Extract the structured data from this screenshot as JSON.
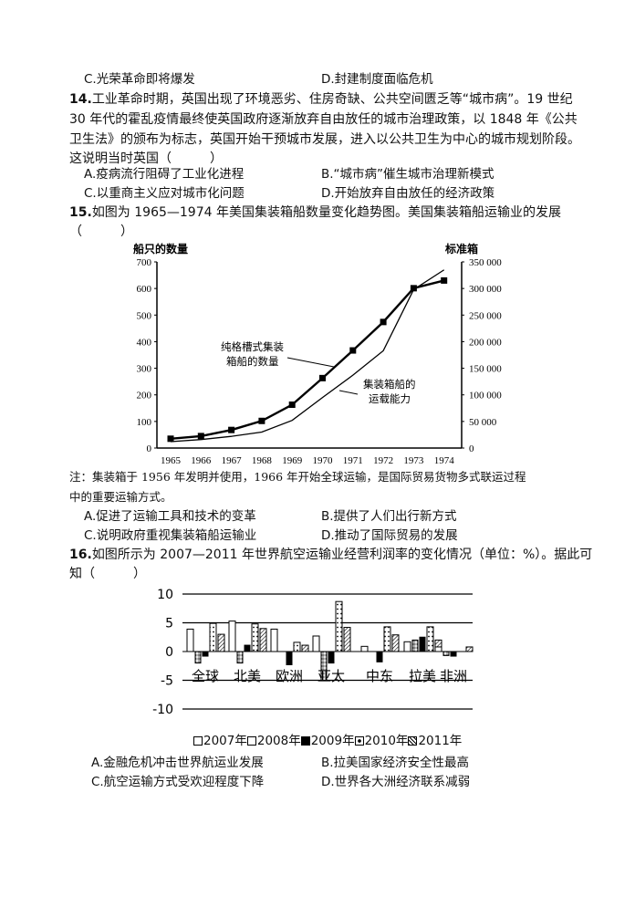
{
  "q13_tail": {
    "optC": "C.光荣革命即将爆发",
    "optD": "D.封建制度面临危机"
  },
  "q14": {
    "number": "14.",
    "stem_line1": "工业革命时期，英国出现了环境恶劣、住房奇缺、公共空间匮乏等“城市病”。19 世纪",
    "stem_line2": "30 年代的霍乱疫情最终使英国政府逐渐放弃自由放任的城市治理政策，以 1848 年《公共",
    "stem_line3": "卫生法》的颁布为标志，英国开始干预城市发展，进入以公共卫生为中心的城市规划阶段。",
    "stem_line4": "这说明当时英国（　　　）",
    "optA": "A.疫病流行阻碍了工业化进程",
    "optB": "B.“城市病”催生城市治理新模式",
    "optC": "C.以重商主义应对城市化问题",
    "optD": "D.开始放弃自由放任的经济政策"
  },
  "q15": {
    "number": "15.",
    "stem_line1": "如图为 1965—1974 年美国集装箱船数量变化趋势图。美国集装箱船运输业的发展",
    "stem_line2": "（　　　）",
    "note_line1": "注：集装箱于 1956 年发明并使用，1966 年开始全球运输，是国际贸易货物多式联运过程",
    "note_line2": "中的重要运输方式。",
    "optA": "A.促进了运输工具和技术的变革",
    "optB": "B.提供了人们出行新方式",
    "optC": "C.说明政府重视集装箱船运输业",
    "optD": "D.推动了国际贸易的发展"
  },
  "q16": {
    "number": "16.",
    "stem_line1": "如图所示为 2007—2011 年世界航空运输业经营利润率的变化情况（单位：%）。据此可",
    "stem_line2": "知（　　　）",
    "optA": "A.金融危机冲击世界航运业发展",
    "optB": "B.拉美国家经济安全性最高",
    "optC": "C.航空运输方式受欢迎程度下降",
    "optD": "D.世界各大洲经济联系减弱"
  },
  "chart_data": [
    {
      "type": "line",
      "title": "",
      "ylabel": "船只的数量",
      "ylabel_right": "标准箱",
      "xlabel": "",
      "ylim": [
        0,
        700
      ],
      "ylim_right": [
        0,
        350000
      ],
      "yticks": [
        "0",
        "100",
        "200",
        "300",
        "400",
        "500",
        "600",
        "700"
      ],
      "yticks_right": [
        "0",
        "50 000",
        "100 000",
        "150 000",
        "200 000",
        "250 000",
        "300 000",
        "350 000"
      ],
      "categories": [
        "1965",
        "1966",
        "1967",
        "1968",
        "1969",
        "1970",
        "1971",
        "1972",
        "1973",
        "1974"
      ],
      "series": [
        {
          "name": "纯格槽式集装箱船的数量",
          "axis": "left",
          "marker": "square",
          "values": [
            35,
            45,
            68,
            102,
            163,
            263,
            367,
            474,
            601,
            630
          ]
        },
        {
          "name": "集装箱船的运载能力",
          "axis": "right",
          "marker": "none",
          "values": [
            12000,
            16000,
            22000,
            30000,
            52000,
            95000,
            137000,
            183000,
            298000,
            335000
          ]
        }
      ],
      "annotations": [
        "纯格槽式集装",
        "箱船的数量",
        "集装箱船的",
        "运载能力"
      ],
      "grid": false
    },
    {
      "type": "bar",
      "title": "",
      "xlabel": "",
      "ylabel": "",
      "ylim": [
        -10,
        10
      ],
      "yticks": [
        "10",
        "5",
        "0",
        "-5",
        "-10"
      ],
      "categories": [
        "全球",
        "北美",
        "欧洲",
        "亚太",
        "中东",
        "拉美",
        "非洲"
      ],
      "series": [
        {
          "name": "2007年",
          "values": [
            3.9,
            5.3,
            3.9,
            2.7,
            0.9,
            1.7,
            0.8
          ]
        },
        {
          "name": "2008年",
          "values": [
            -2.0,
            -2.0,
            0.0,
            -5.0,
            0.0,
            2.0,
            -0.7
          ]
        },
        {
          "name": "2009年",
          "values": [
            -0.8,
            1.1,
            -2.3,
            -2.0,
            -1.8,
            2.5,
            -0.8
          ]
        },
        {
          "name": "2010年",
          "values": [
            4.9,
            4.8,
            1.6,
            8.7,
            4.3,
            4.3,
            0.0
          ]
        },
        {
          "name": "2011年",
          "values": [
            3.0,
            4.0,
            1.1,
            4.2,
            2.9,
            2.0,
            0.8
          ]
        }
      ],
      "legend": [
        "2007年",
        "2008年",
        "2009年",
        "2010年",
        "2011年"
      ],
      "legend_position": "bottom",
      "grid": true
    }
  ]
}
